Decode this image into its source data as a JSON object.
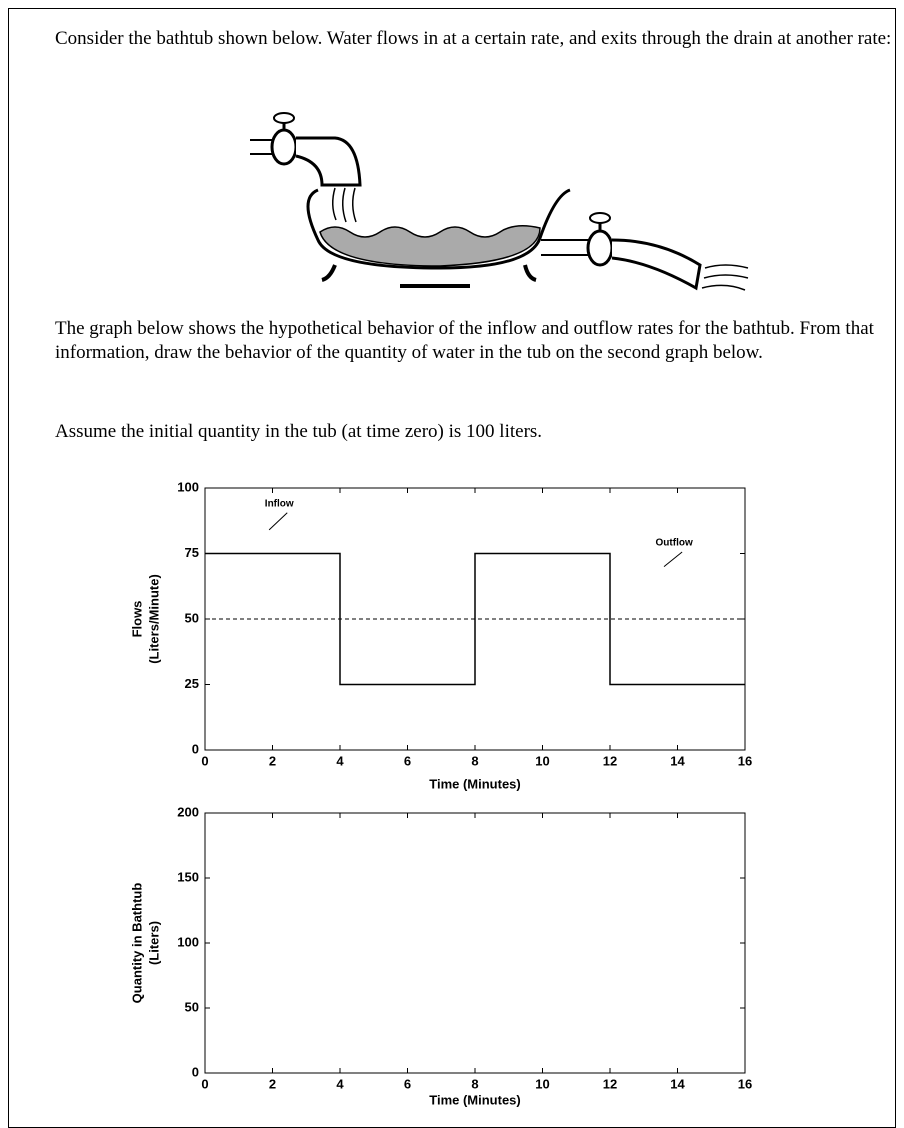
{
  "intro": "Consider the bathtub shown below.  Water flows in at a certain rate, and exits through the drain at another rate:",
  "paragraph": "The graph below shows the hypothetical behavior of the inflow and outflow rates for the bathtub.  From that information, draw the behavior of the quantity of water in the tub on the second graph below.",
  "assumption": "Assume the initial quantity in the tub (at time zero) is 100 liters.",
  "chart_data": [
    {
      "type": "line",
      "xlabel": "Time (Minutes)",
      "ylabel": [
        "Flows",
        "(Liters/Minute)"
      ],
      "xlim": [
        0,
        16
      ],
      "xticks": [
        0,
        2,
        4,
        6,
        8,
        10,
        12,
        14,
        16
      ],
      "ylim": [
        0,
        100
      ],
      "yticks": [
        0,
        25,
        50,
        75,
        100
      ],
      "annotations": [
        "Inflow",
        "Outflow"
      ],
      "series": [
        {
          "color": "#000000",
          "dash": false,
          "x": [
            0,
            4,
            4,
            8,
            8,
            12,
            12,
            16
          ],
          "values": [
            75,
            75,
            25,
            25,
            75,
            75,
            25,
            25
          ]
        },
        {
          "color": "#000000",
          "dash": true,
          "x": [
            0,
            16
          ],
          "values": [
            50,
            50
          ]
        }
      ]
    },
    {
      "type": "line",
      "xlabel": "Time (Minutes)",
      "ylabel": [
        "Quantity in Bathtub",
        "(Liters)"
      ],
      "xlim": [
        0,
        16
      ],
      "xticks": [
        0,
        2,
        4,
        6,
        8,
        10,
        12,
        14,
        16
      ],
      "ylim": [
        0,
        200
      ],
      "yticks": [
        0,
        50,
        100,
        150,
        200
      ],
      "series": []
    }
  ]
}
